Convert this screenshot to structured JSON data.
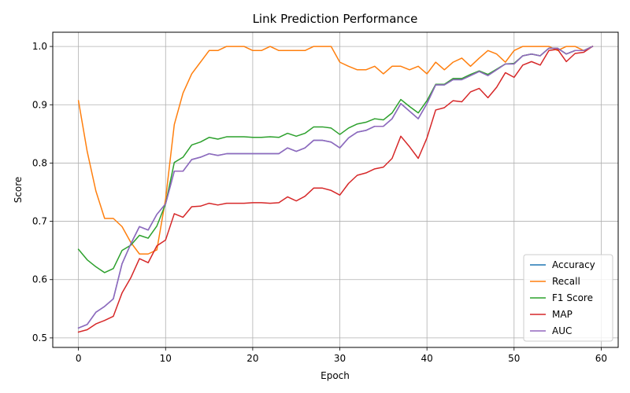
{
  "chart_data": {
    "type": "line",
    "title": "Link Prediction Performance",
    "xlabel": "Epoch",
    "ylabel": "Score",
    "xlim": [
      -2.95,
      61.95
    ],
    "ylim": [
      0.4837,
      1.0244
    ],
    "xticks": [
      0,
      10,
      20,
      30,
      40,
      50,
      60
    ],
    "yticks": [
      0.5,
      0.6,
      0.7,
      0.8,
      0.9,
      1.0
    ],
    "ytick_labels": [
      "0.5",
      "0.6",
      "0.7",
      "0.8",
      "0.9",
      "1.0"
    ],
    "grid": true,
    "legend_position": "lower-right",
    "x": [
      0,
      1,
      2,
      3,
      4,
      5,
      6,
      7,
      8,
      9,
      10,
      11,
      12,
      13,
      14,
      15,
      16,
      17,
      18,
      19,
      20,
      21,
      22,
      23,
      24,
      25,
      26,
      27,
      28,
      29,
      30,
      31,
      32,
      33,
      34,
      35,
      36,
      37,
      38,
      39,
      40,
      41,
      42,
      43,
      44,
      45,
      46,
      47,
      48,
      49,
      50,
      51,
      52,
      53,
      54,
      55,
      56,
      57,
      58,
      59
    ],
    "series": [
      {
        "name": "Accuracy",
        "color": "#1f77b4",
        "values": [
          0.517,
          0.523,
          0.544,
          0.554,
          0.567,
          0.627,
          0.661,
          0.691,
          0.685,
          0.712,
          0.73,
          0.786,
          0.786,
          0.806,
          0.81,
          0.816,
          0.813,
          0.816,
          0.816,
          0.816,
          0.816,
          0.816,
          0.816,
          0.816,
          0.826,
          0.82,
          0.826,
          0.839,
          0.839,
          0.836,
          0.826,
          0.843,
          0.853,
          0.856,
          0.863,
          0.863,
          0.876,
          0.902,
          0.889,
          0.876,
          0.902,
          0.934,
          0.934,
          0.943,
          0.943,
          0.95,
          0.957,
          0.95,
          0.96,
          0.97,
          0.97,
          0.984,
          0.987,
          0.984,
          0.997,
          0.997,
          0.987,
          0.993,
          0.993,
          1.0
        ]
      },
      {
        "name": "Recall",
        "color": "#ff7f0e",
        "values": [
          0.907,
          0.82,
          0.752,
          0.705,
          0.705,
          0.691,
          0.664,
          0.644,
          0.644,
          0.651,
          0.738,
          0.866,
          0.92,
          0.953,
          0.973,
          0.993,
          0.993,
          1.0,
          1.0,
          1.0,
          0.993,
          0.993,
          1.0,
          0.993,
          0.993,
          0.993,
          0.993,
          1.0,
          1.0,
          1.0,
          0.973,
          0.966,
          0.96,
          0.96,
          0.966,
          0.953,
          0.966,
          0.966,
          0.96,
          0.966,
          0.953,
          0.973,
          0.96,
          0.973,
          0.98,
          0.966,
          0.98,
          0.993,
          0.987,
          0.973,
          0.993,
          1.0,
          1.0,
          1.0,
          1.0,
          0.993,
          1.0,
          1.0,
          0.993,
          1.0
        ]
      },
      {
        "name": "F1 Score",
        "color": "#2ca02c",
        "values": [
          0.652,
          0.634,
          0.622,
          0.612,
          0.619,
          0.65,
          0.659,
          0.676,
          0.671,
          0.692,
          0.73,
          0.801,
          0.81,
          0.831,
          0.836,
          0.844,
          0.841,
          0.845,
          0.845,
          0.845,
          0.844,
          0.844,
          0.845,
          0.844,
          0.851,
          0.846,
          0.851,
          0.862,
          0.862,
          0.86,
          0.849,
          0.86,
          0.867,
          0.87,
          0.876,
          0.874,
          0.886,
          0.909,
          0.897,
          0.886,
          0.907,
          0.935,
          0.935,
          0.945,
          0.945,
          0.952,
          0.958,
          0.952,
          0.961,
          0.97,
          0.971,
          0.984,
          0.987,
          0.984,
          0.997,
          0.997,
          0.987,
          0.993,
          0.993,
          1.0
        ]
      },
      {
        "name": "MAP",
        "color": "#d62728",
        "values": [
          0.51,
          0.514,
          0.524,
          0.53,
          0.537,
          0.577,
          0.603,
          0.636,
          0.629,
          0.658,
          0.668,
          0.713,
          0.707,
          0.725,
          0.726,
          0.731,
          0.728,
          0.731,
          0.731,
          0.731,
          0.732,
          0.732,
          0.731,
          0.732,
          0.742,
          0.735,
          0.743,
          0.757,
          0.757,
          0.753,
          0.745,
          0.765,
          0.779,
          0.783,
          0.79,
          0.793,
          0.808,
          0.846,
          0.828,
          0.808,
          0.843,
          0.891,
          0.895,
          0.907,
          0.905,
          0.922,
          0.928,
          0.912,
          0.93,
          0.955,
          0.947,
          0.968,
          0.974,
          0.968,
          0.993,
          0.995,
          0.974,
          0.988,
          0.99,
          1.0
        ]
      },
      {
        "name": "AUC",
        "color": "#9467bd",
        "values": [
          0.517,
          0.523,
          0.544,
          0.554,
          0.567,
          0.627,
          0.661,
          0.691,
          0.685,
          0.712,
          0.73,
          0.786,
          0.786,
          0.806,
          0.81,
          0.816,
          0.813,
          0.816,
          0.816,
          0.816,
          0.816,
          0.816,
          0.816,
          0.816,
          0.826,
          0.82,
          0.826,
          0.839,
          0.839,
          0.836,
          0.826,
          0.843,
          0.853,
          0.856,
          0.863,
          0.863,
          0.876,
          0.902,
          0.889,
          0.876,
          0.902,
          0.934,
          0.934,
          0.943,
          0.943,
          0.95,
          0.957,
          0.95,
          0.96,
          0.97,
          0.97,
          0.984,
          0.987,
          0.984,
          0.997,
          0.997,
          0.987,
          0.993,
          0.993,
          1.0
        ]
      }
    ]
  }
}
